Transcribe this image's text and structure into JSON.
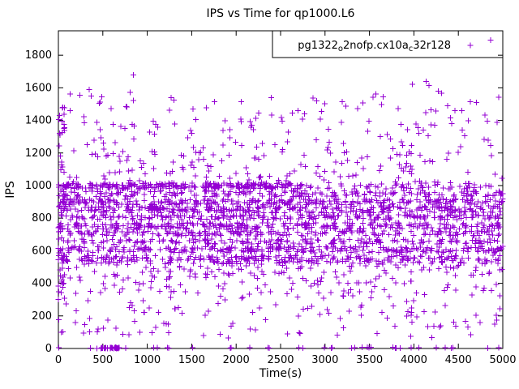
{
  "window": {
    "background": "#ffffff"
  },
  "chart_data": {
    "type": "scatter",
    "title": "IPS vs Time for qp1000.L6",
    "xlabel": "Time(s)",
    "ylabel": "IPS",
    "xlim": [
      0,
      5000
    ],
    "ylim": [
      0,
      1950
    ],
    "xticks": [
      0,
      500,
      1000,
      1500,
      2000,
      2500,
      3000,
      3500,
      4000,
      4500,
      5000
    ],
    "yticks": [
      0,
      200,
      400,
      600,
      800,
      1000,
      1200,
      1400,
      1600,
      1800
    ],
    "grid": false,
    "legend": {
      "label": "pg1322_o2nofp.cx10a_c32r128",
      "parts": [
        {
          "text": "pg1322"
        },
        {
          "text": "o",
          "sub": true
        },
        {
          "text": "2nofp.cx10a"
        },
        {
          "text": "c",
          "sub": true
        },
        {
          "text": "32r128"
        }
      ],
      "position": "top-right",
      "boxed": true
    },
    "marker": {
      "shape": "plus",
      "color": "#9400D3",
      "size": 7
    },
    "seed": 1322,
    "point_distribution_note": "dense horizontal bands of points; each band: x-range, y-range (IPS), approx point count",
    "bands": [
      {
        "x": [
          0,
          2700
        ],
        "y": [
          980,
          1015
        ],
        "n": 240
      },
      {
        "x": [
          2700,
          5000
        ],
        "y": [
          980,
          1015
        ],
        "n": 60
      },
      {
        "x": [
          0,
          5000
        ],
        "y": [
          930,
          968
        ],
        "n": 190
      },
      {
        "x": [
          0,
          5000
        ],
        "y": [
          882,
          918
        ],
        "n": 270
      },
      {
        "x": [
          0,
          5000
        ],
        "y": [
          832,
          876
        ],
        "n": 310
      },
      {
        "x": [
          0,
          5000
        ],
        "y": [
          790,
          822
        ],
        "n": 210
      },
      {
        "x": [
          0,
          5000
        ],
        "y": [
          732,
          772
        ],
        "n": 290
      },
      {
        "x": [
          0,
          5000
        ],
        "y": [
          690,
          722
        ],
        "n": 190
      },
      {
        "x": [
          0,
          5000
        ],
        "y": [
          640,
          672
        ],
        "n": 170
      },
      {
        "x": [
          0,
          5000
        ],
        "y": [
          588,
          626
        ],
        "n": 270
      },
      {
        "x": [
          0,
          5000
        ],
        "y": [
          520,
          572
        ],
        "n": 290
      },
      {
        "x": [
          0,
          5000
        ],
        "y": [
          432,
          520
        ],
        "n": 110
      },
      {
        "x": [
          0,
          5000
        ],
        "y": [
          330,
          432
        ],
        "n": 80
      },
      {
        "x": [
          0,
          5000
        ],
        "y": [
          200,
          330
        ],
        "n": 60
      },
      {
        "x": [
          0,
          5000
        ],
        "y": [
          60,
          200
        ],
        "n": 55
      },
      {
        "x": [
          0,
          5000
        ],
        "y": [
          0,
          8
        ],
        "n": 40
      },
      {
        "x": [
          480,
          680
        ],
        "y": [
          0,
          6
        ],
        "n": 30
      },
      {
        "x": [
          0,
          5000
        ],
        "y": [
          1015,
          1200
        ],
        "n": 130
      },
      {
        "x": [
          0,
          5000
        ],
        "y": [
          1200,
          1400
        ],
        "n": 95
      },
      {
        "x": [
          0,
          5000
        ],
        "y": [
          1400,
          1560
        ],
        "n": 55
      },
      {
        "x": [
          0,
          5000
        ],
        "y": [
          1560,
          1680
        ],
        "n": 10
      },
      {
        "x": [
          4700,
          4900
        ],
        "y": [
          1850,
          1900
        ],
        "n": 1
      },
      {
        "x": [
          0,
          70
        ],
        "y": [
          100,
          1500
        ],
        "n": 45
      }
    ]
  }
}
